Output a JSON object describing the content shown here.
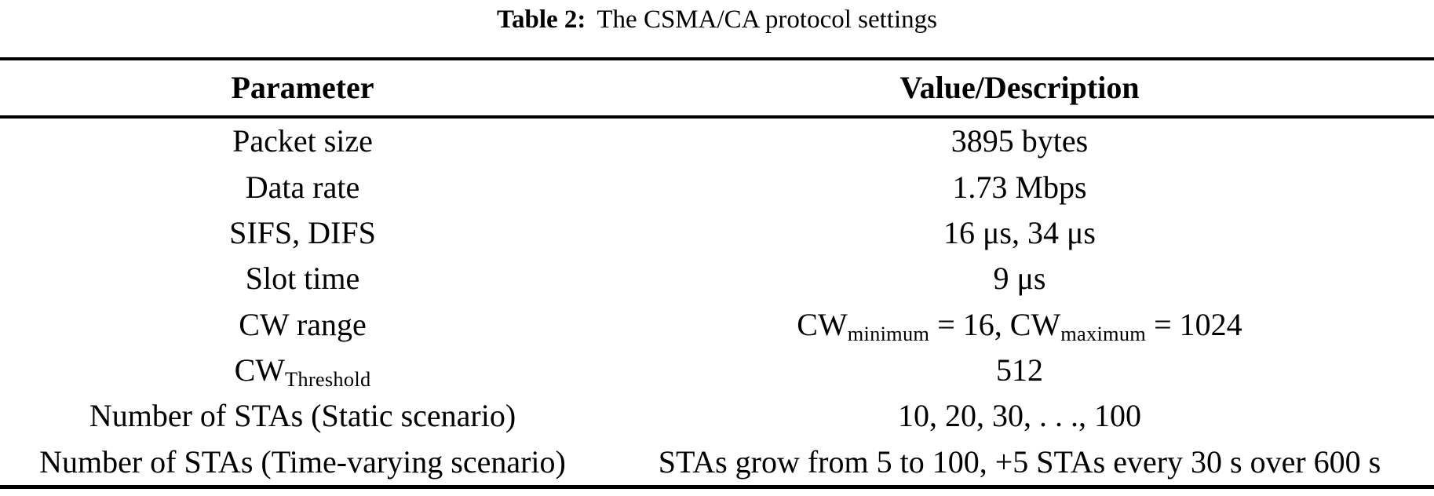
{
  "caption": {
    "label": "Table 2:",
    "text": "The CSMA/CA protocol settings"
  },
  "table": {
    "headers": {
      "parameter": "Parameter",
      "value": "Value/Description"
    },
    "rows": [
      {
        "param": "Packet size",
        "value": "3895 bytes"
      },
      {
        "param": "Data rate",
        "value": "1.73 Mbps"
      },
      {
        "param": "SIFS, DIFS",
        "value": "16 μs, 34 μs"
      },
      {
        "param": "Slot time",
        "value": "9 μs"
      },
      {
        "param": "CW range",
        "value_parts": {
          "text1": "CW",
          "sub1": "minimum",
          "text2": " = 16, CW",
          "sub2": "maximum",
          "text3": " = 1024"
        }
      },
      {
        "param_parts": {
          "text1": "CW",
          "sub1": "Threshold"
        },
        "value": "512"
      },
      {
        "param": "Number of STAs (Static scenario)",
        "value": "10, 20, 30, . . ., 100"
      },
      {
        "param": "Number of STAs (Time-varying scenario)",
        "value": "STAs grow from 5 to 100, +5 STAs every 30 s over 600 s"
      }
    ]
  }
}
